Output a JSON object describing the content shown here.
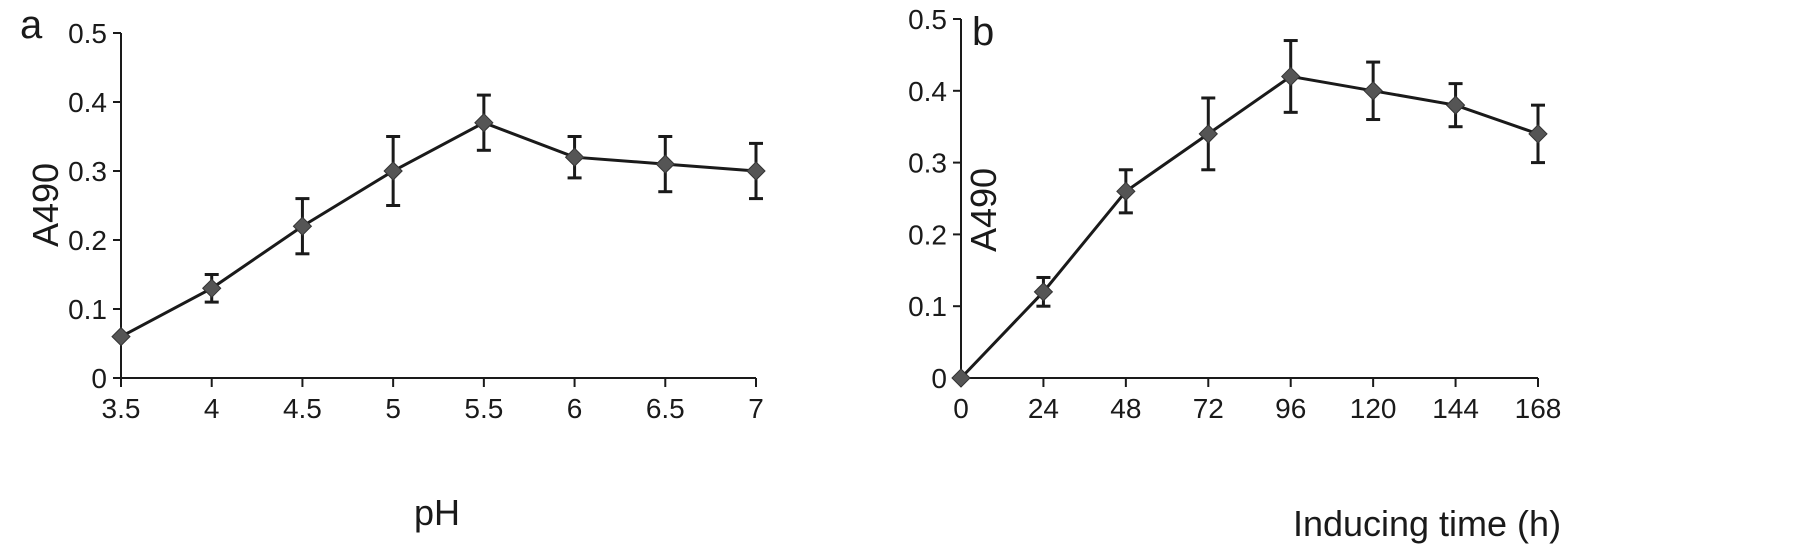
{
  "chart_data": [
    {
      "type": "line",
      "panel": "a",
      "xlabel": "pH",
      "ylabel": "A490",
      "x": [
        3.5,
        4,
        4.5,
        5,
        5.5,
        6,
        6.5,
        7
      ],
      "x_tick_labels": [
        "3.5",
        "4",
        "4.5",
        "5",
        "5.5",
        "6",
        "6.5",
        "7"
      ],
      "xlim": [
        3.5,
        7
      ],
      "ylim": [
        0,
        0.5
      ],
      "y_tick_labels": [
        "0",
        "0.1",
        "0.2",
        "0.3",
        "0.4",
        "0.5"
      ],
      "y_ticks": [
        0,
        0.1,
        0.2,
        0.3,
        0.4,
        0.5
      ],
      "series": [
        {
          "values": [
            0.06,
            0.13,
            0.22,
            0.3,
            0.37,
            0.32,
            0.31,
            0.3
          ],
          "error": [
            0.0,
            0.02,
            0.04,
            0.05,
            0.04,
            0.03,
            0.04,
            0.04
          ],
          "marker": "diamond",
          "color": "#1a1a1a",
          "marker_color": "#555555"
        }
      ],
      "grid": false,
      "legend": "none"
    },
    {
      "type": "line",
      "panel": "b",
      "xlabel": "Inducing time (h)",
      "ylabel": "A490",
      "x": [
        0,
        24,
        48,
        72,
        96,
        120,
        144,
        168
      ],
      "x_tick_labels": [
        "0",
        "24",
        "48",
        "72",
        "96",
        "120",
        "144",
        "168"
      ],
      "xlim": [
        0,
        168
      ],
      "ylim": [
        0,
        0.5
      ],
      "y_tick_labels": [
        "0",
        "0.1",
        "0.2",
        "0.3",
        "0.4",
        "0.5"
      ],
      "y_ticks": [
        0,
        0.1,
        0.2,
        0.3,
        0.4,
        0.5
      ],
      "series": [
        {
          "values": [
            0.0,
            0.12,
            0.26,
            0.34,
            0.42,
            0.4,
            0.38,
            0.34
          ],
          "error": [
            0.0,
            0.02,
            0.03,
            0.05,
            0.05,
            0.04,
            0.03,
            0.04
          ],
          "marker": "diamond",
          "color": "#1a1a1a",
          "marker_color": "#555555"
        }
      ],
      "grid": false,
      "legend": "none"
    }
  ]
}
